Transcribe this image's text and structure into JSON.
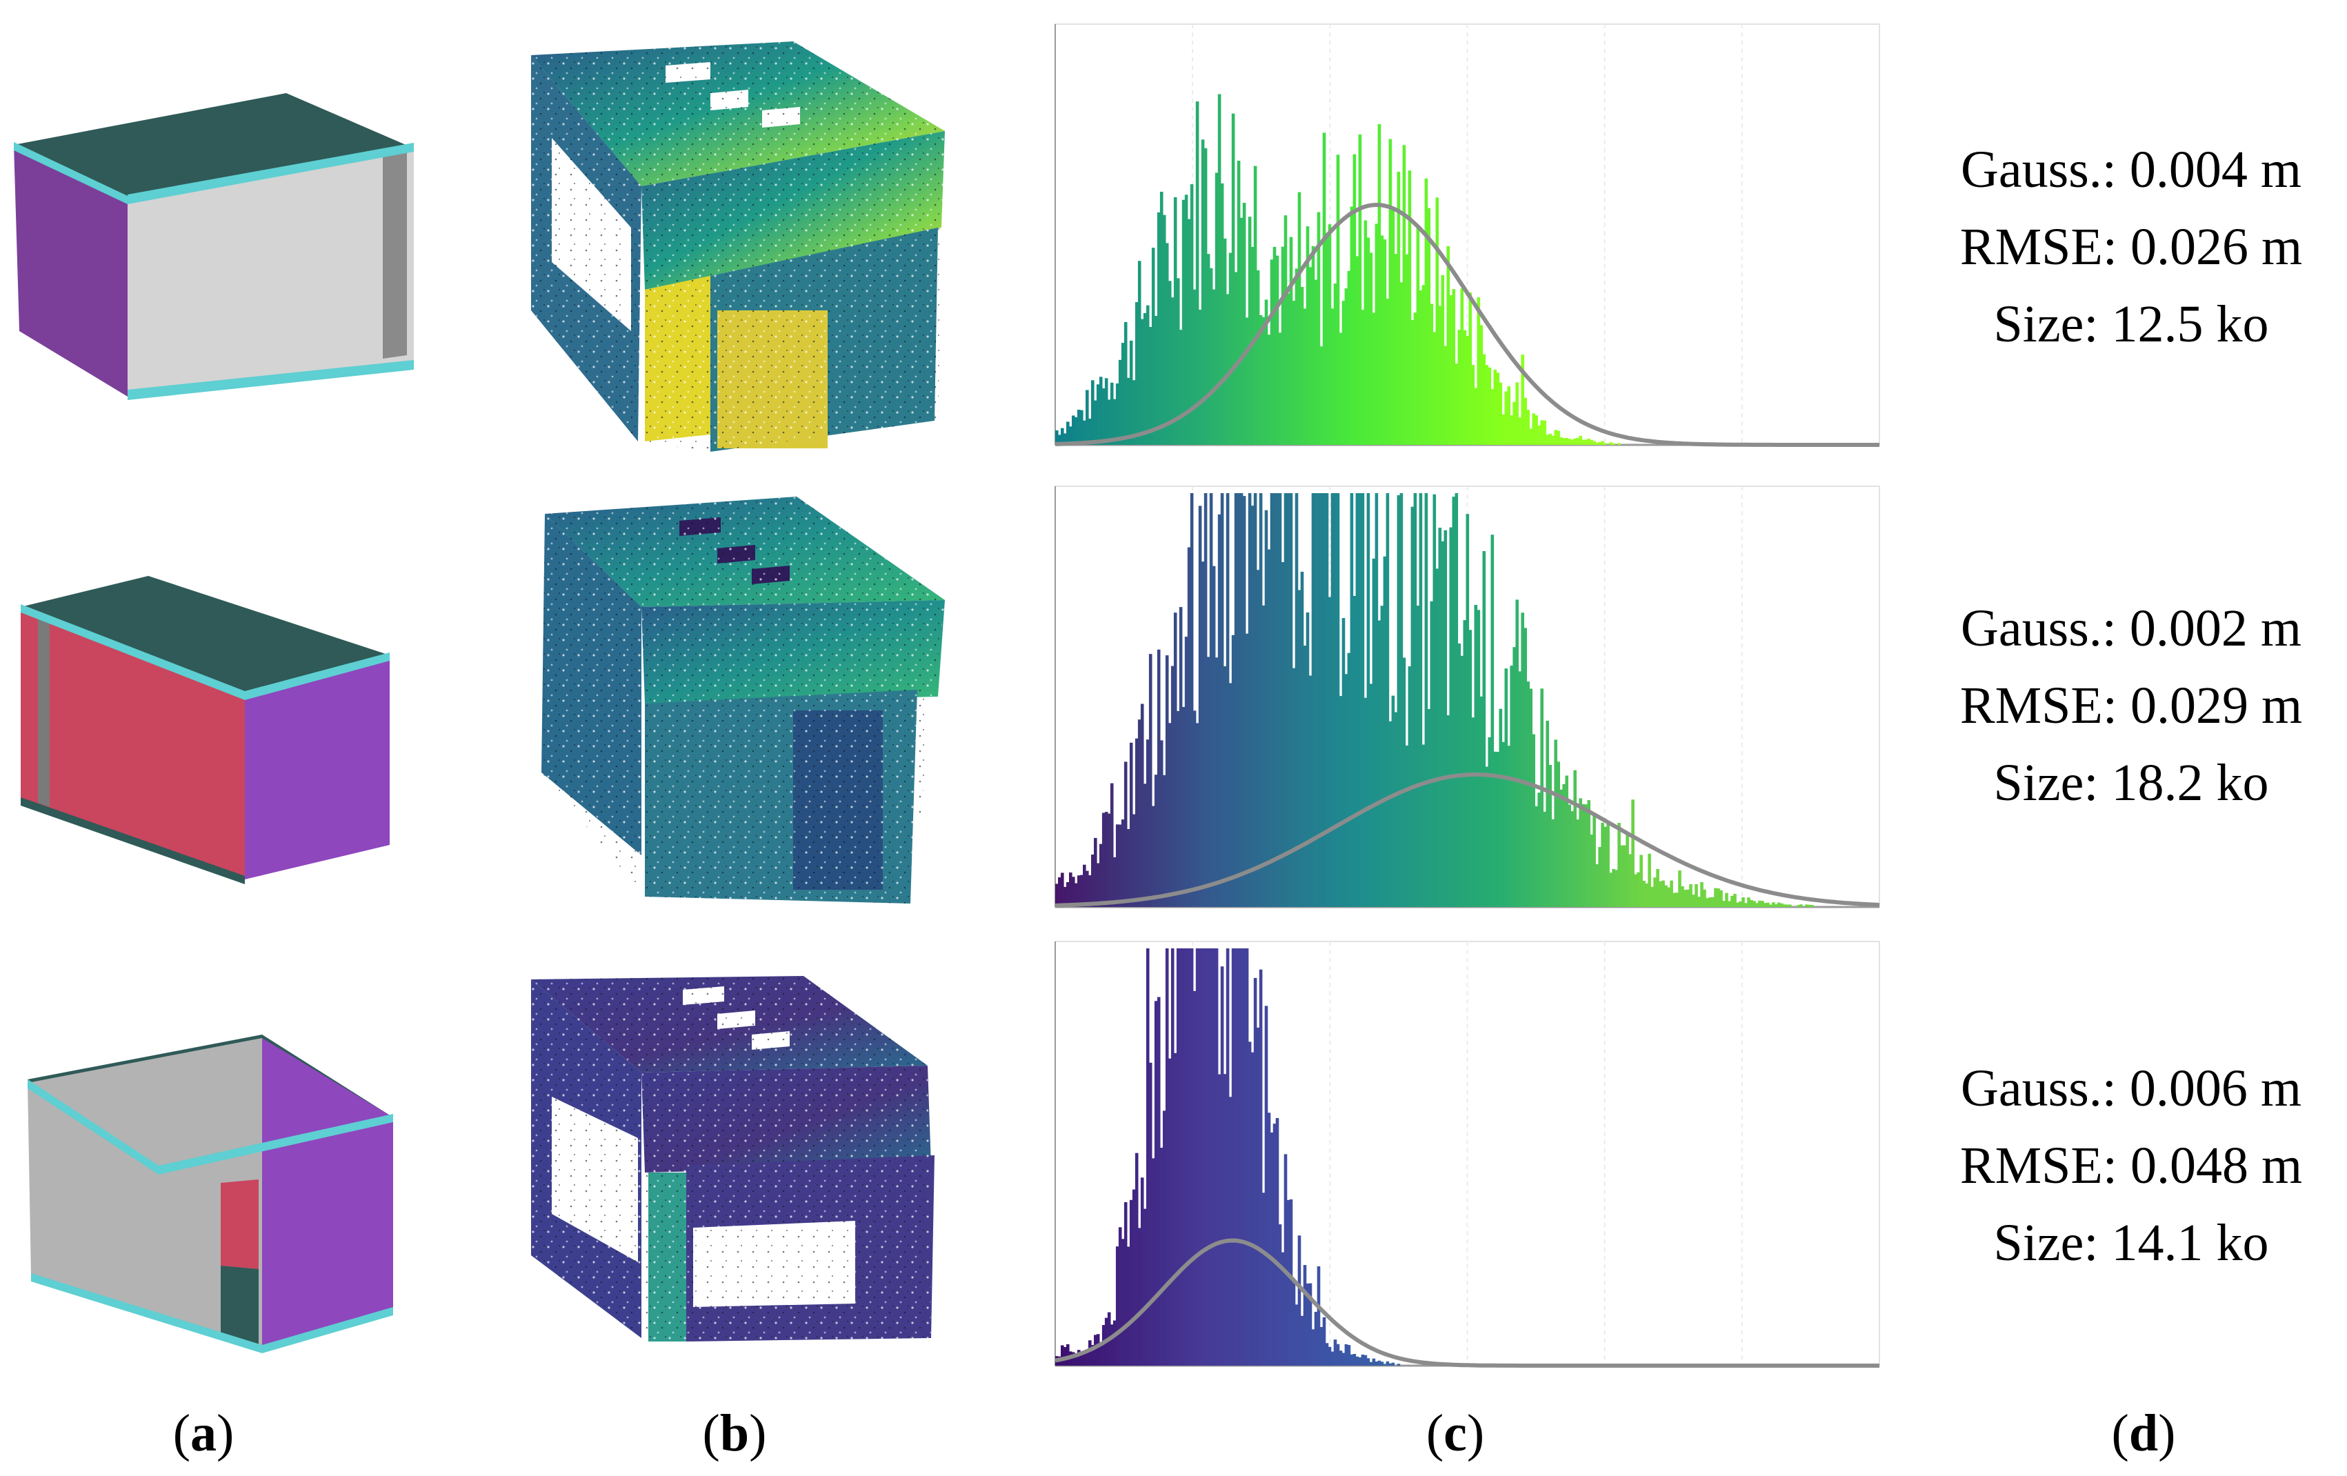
{
  "figure": {
    "rows": [
      {
        "model_colors": {
          "top": "#2f5a57",
          "edge": "#5ecfd2",
          "side": "#7b3f9a",
          "front": "#d4d4d4"
        },
        "histogram": {
          "palette": [
            "#0e7f8c",
            "#27ad70",
            "#49e83a",
            "#86ff1c",
            "#a4ff2a"
          ],
          "gauss_center": 0.39,
          "gauss_sigma": 0.115,
          "gauss_peak": 0.58
        },
        "stats": {
          "gauss": "Gauss.: 0.004 m",
          "rmse": "RMSE: 0.026 m",
          "size": "Size: 12.5 ko"
        }
      },
      {
        "model_colors": {
          "top": "#2f5a57",
          "edge": "#5ecfd2",
          "side": "#8e47bd",
          "front": "#c9465e"
        },
        "histogram": {
          "palette": [
            "#46166a",
            "#35578e",
            "#1e8b8f",
            "#27ad70",
            "#70d542"
          ],
          "gauss_center": 0.51,
          "gauss_sigma": 0.17,
          "gauss_peak": 0.32
        },
        "stats": {
          "gauss": "Gauss.: 0.002 m",
          "rmse": "RMSE: 0.029 m",
          "size": "Size: 18.2 ko"
        }
      },
      {
        "model_colors": {
          "top": "#2f5a57",
          "edge": "#5ecfd2",
          "side": "#8e47bd",
          "front": "#b3b3b3"
        },
        "histogram": {
          "palette": [
            "#3b0f6e",
            "#463a96",
            "#3b59a8",
            "#2f7f9a",
            "#22a8a0"
          ],
          "gauss_center": 0.215,
          "gauss_sigma": 0.085,
          "gauss_peak": 0.3
        },
        "stats": {
          "gauss": "Gauss.: 0.006 m",
          "rmse": "RMSE: 0.048 m",
          "size": "Size: 14.1 ko"
        }
      }
    ],
    "captions": {
      "a": "a",
      "b": "b",
      "c": "c",
      "d": "d"
    }
  }
}
